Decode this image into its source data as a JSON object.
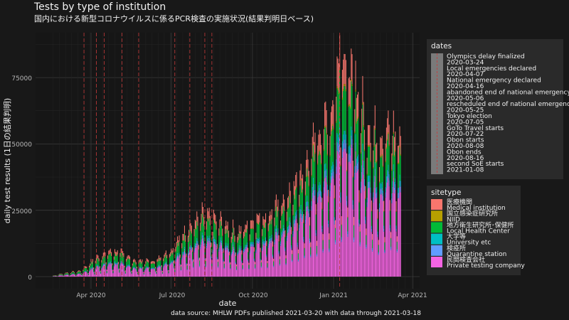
{
  "chart_data": {
    "type": "bar",
    "stacked": true,
    "title": "Tests by type of institution",
    "subtitle": "国内における新型コロナウイルスに係るPCR検査の実施状況(結果判明日ベース)",
    "xlabel": "date",
    "ylabel": "daily test results (1日の結果判明)",
    "caption": "data source: MHLW PDFs published 2021-03-20 with data through 2021-03-18",
    "x_range": [
      "2020-02-18",
      "2021-03-18"
    ],
    "x_ticks": [
      "Apr 2020",
      "Jul 2020",
      "Oct 2020",
      "Jan 2021",
      "Apr 2021"
    ],
    "x_tick_dates": [
      "2020-04-01",
      "2020-07-01",
      "2020-10-01",
      "2021-01-01",
      "2021-04-01"
    ],
    "ylim": [
      -3500,
      93000
    ],
    "y_ticks": [
      "0",
      "25000",
      "50000",
      "75000"
    ],
    "y_tick_values": [
      0,
      25000,
      50000,
      75000
    ],
    "grid": true,
    "background": "#181818",
    "legend_position": "right",
    "series": [
      {
        "name": "医療機関 Medical institution",
        "color": "#F8766D"
      },
      {
        "name": "国立感染症研究所 NIID",
        "color": "#B79F00"
      },
      {
        "name": "地方衛生研究所･保健所 Local Health Center",
        "color": "#00BA38"
      },
      {
        "name": "大学等 University etc",
        "color": "#00BFC4"
      },
      {
        "name": "検疫所 Quarantine station",
        "color": "#619CFF"
      },
      {
        "name": "民間検査会社 Private testing company",
        "color": "#F564E3"
      }
    ],
    "legend_sitetype": {
      "title": "sitetype",
      "labels": [
        "医療機関",
        "Medical institution",
        "国立感染症研究所",
        "NIID",
        "地方衛生研究所･保健所",
        "Local Health Center",
        "大学等",
        "University etc",
        "検疫所",
        "Quarantine station",
        "民間検査会社",
        "Private testing company"
      ]
    },
    "legend_dates": {
      "title": "dates",
      "labels": [
        "Olympics delay finalized",
        "2020-03-24",
        "Local emergencies declared",
        "2020-04-07",
        "National emergency declared",
        "2020-04-16",
        "abandoned end of national emergency",
        "2020-05-06",
        "rescheduled end of national emergency",
        "2020-05-25",
        "Tokyo election",
        "2020-07-05",
        "GoTo Travel starts",
        "2020-07-22",
        "Obon starts",
        "2020-08-08",
        "Obon ends",
        "2020-08-16",
        "second SoE starts",
        "2021-01-08"
      ]
    },
    "event_dates": [
      "2020-03-24",
      "2020-04-07",
      "2020-04-16",
      "2020-05-06",
      "2020-05-25",
      "2020-07-05",
      "2020-07-22",
      "2020-08-08",
      "2020-08-16",
      "2021-01-08"
    ],
    "trend_knots": [
      {
        "date": "2020-02-18",
        "total": 300
      },
      {
        "date": "2020-03-01",
        "total": 1200
      },
      {
        "date": "2020-03-20",
        "total": 2000
      },
      {
        "date": "2020-04-05",
        "total": 6000
      },
      {
        "date": "2020-04-20",
        "total": 8500
      },
      {
        "date": "2020-05-05",
        "total": 8500
      },
      {
        "date": "2020-05-20",
        "total": 5500
      },
      {
        "date": "2020-06-10",
        "total": 5500
      },
      {
        "date": "2020-07-01",
        "total": 9000
      },
      {
        "date": "2020-07-20",
        "total": 17000
      },
      {
        "date": "2020-08-05",
        "total": 21000
      },
      {
        "date": "2020-08-25",
        "total": 19000
      },
      {
        "date": "2020-09-15",
        "total": 15000
      },
      {
        "date": "2020-10-01",
        "total": 19000
      },
      {
        "date": "2020-10-20",
        "total": 21000
      },
      {
        "date": "2020-11-10",
        "total": 27000
      },
      {
        "date": "2020-12-01",
        "total": 38000
      },
      {
        "date": "2020-12-20",
        "total": 52000
      },
      {
        "date": "2021-01-01",
        "total": 58000
      },
      {
        "date": "2021-01-08",
        "total": 83000
      },
      {
        "date": "2021-01-20",
        "total": 70000
      },
      {
        "date": "2021-02-05",
        "total": 55000
      },
      {
        "date": "2021-02-20",
        "total": 47000
      },
      {
        "date": "2021-03-05",
        "total": 50000
      },
      {
        "date": "2021-03-18",
        "total": 47000
      }
    ]
  }
}
